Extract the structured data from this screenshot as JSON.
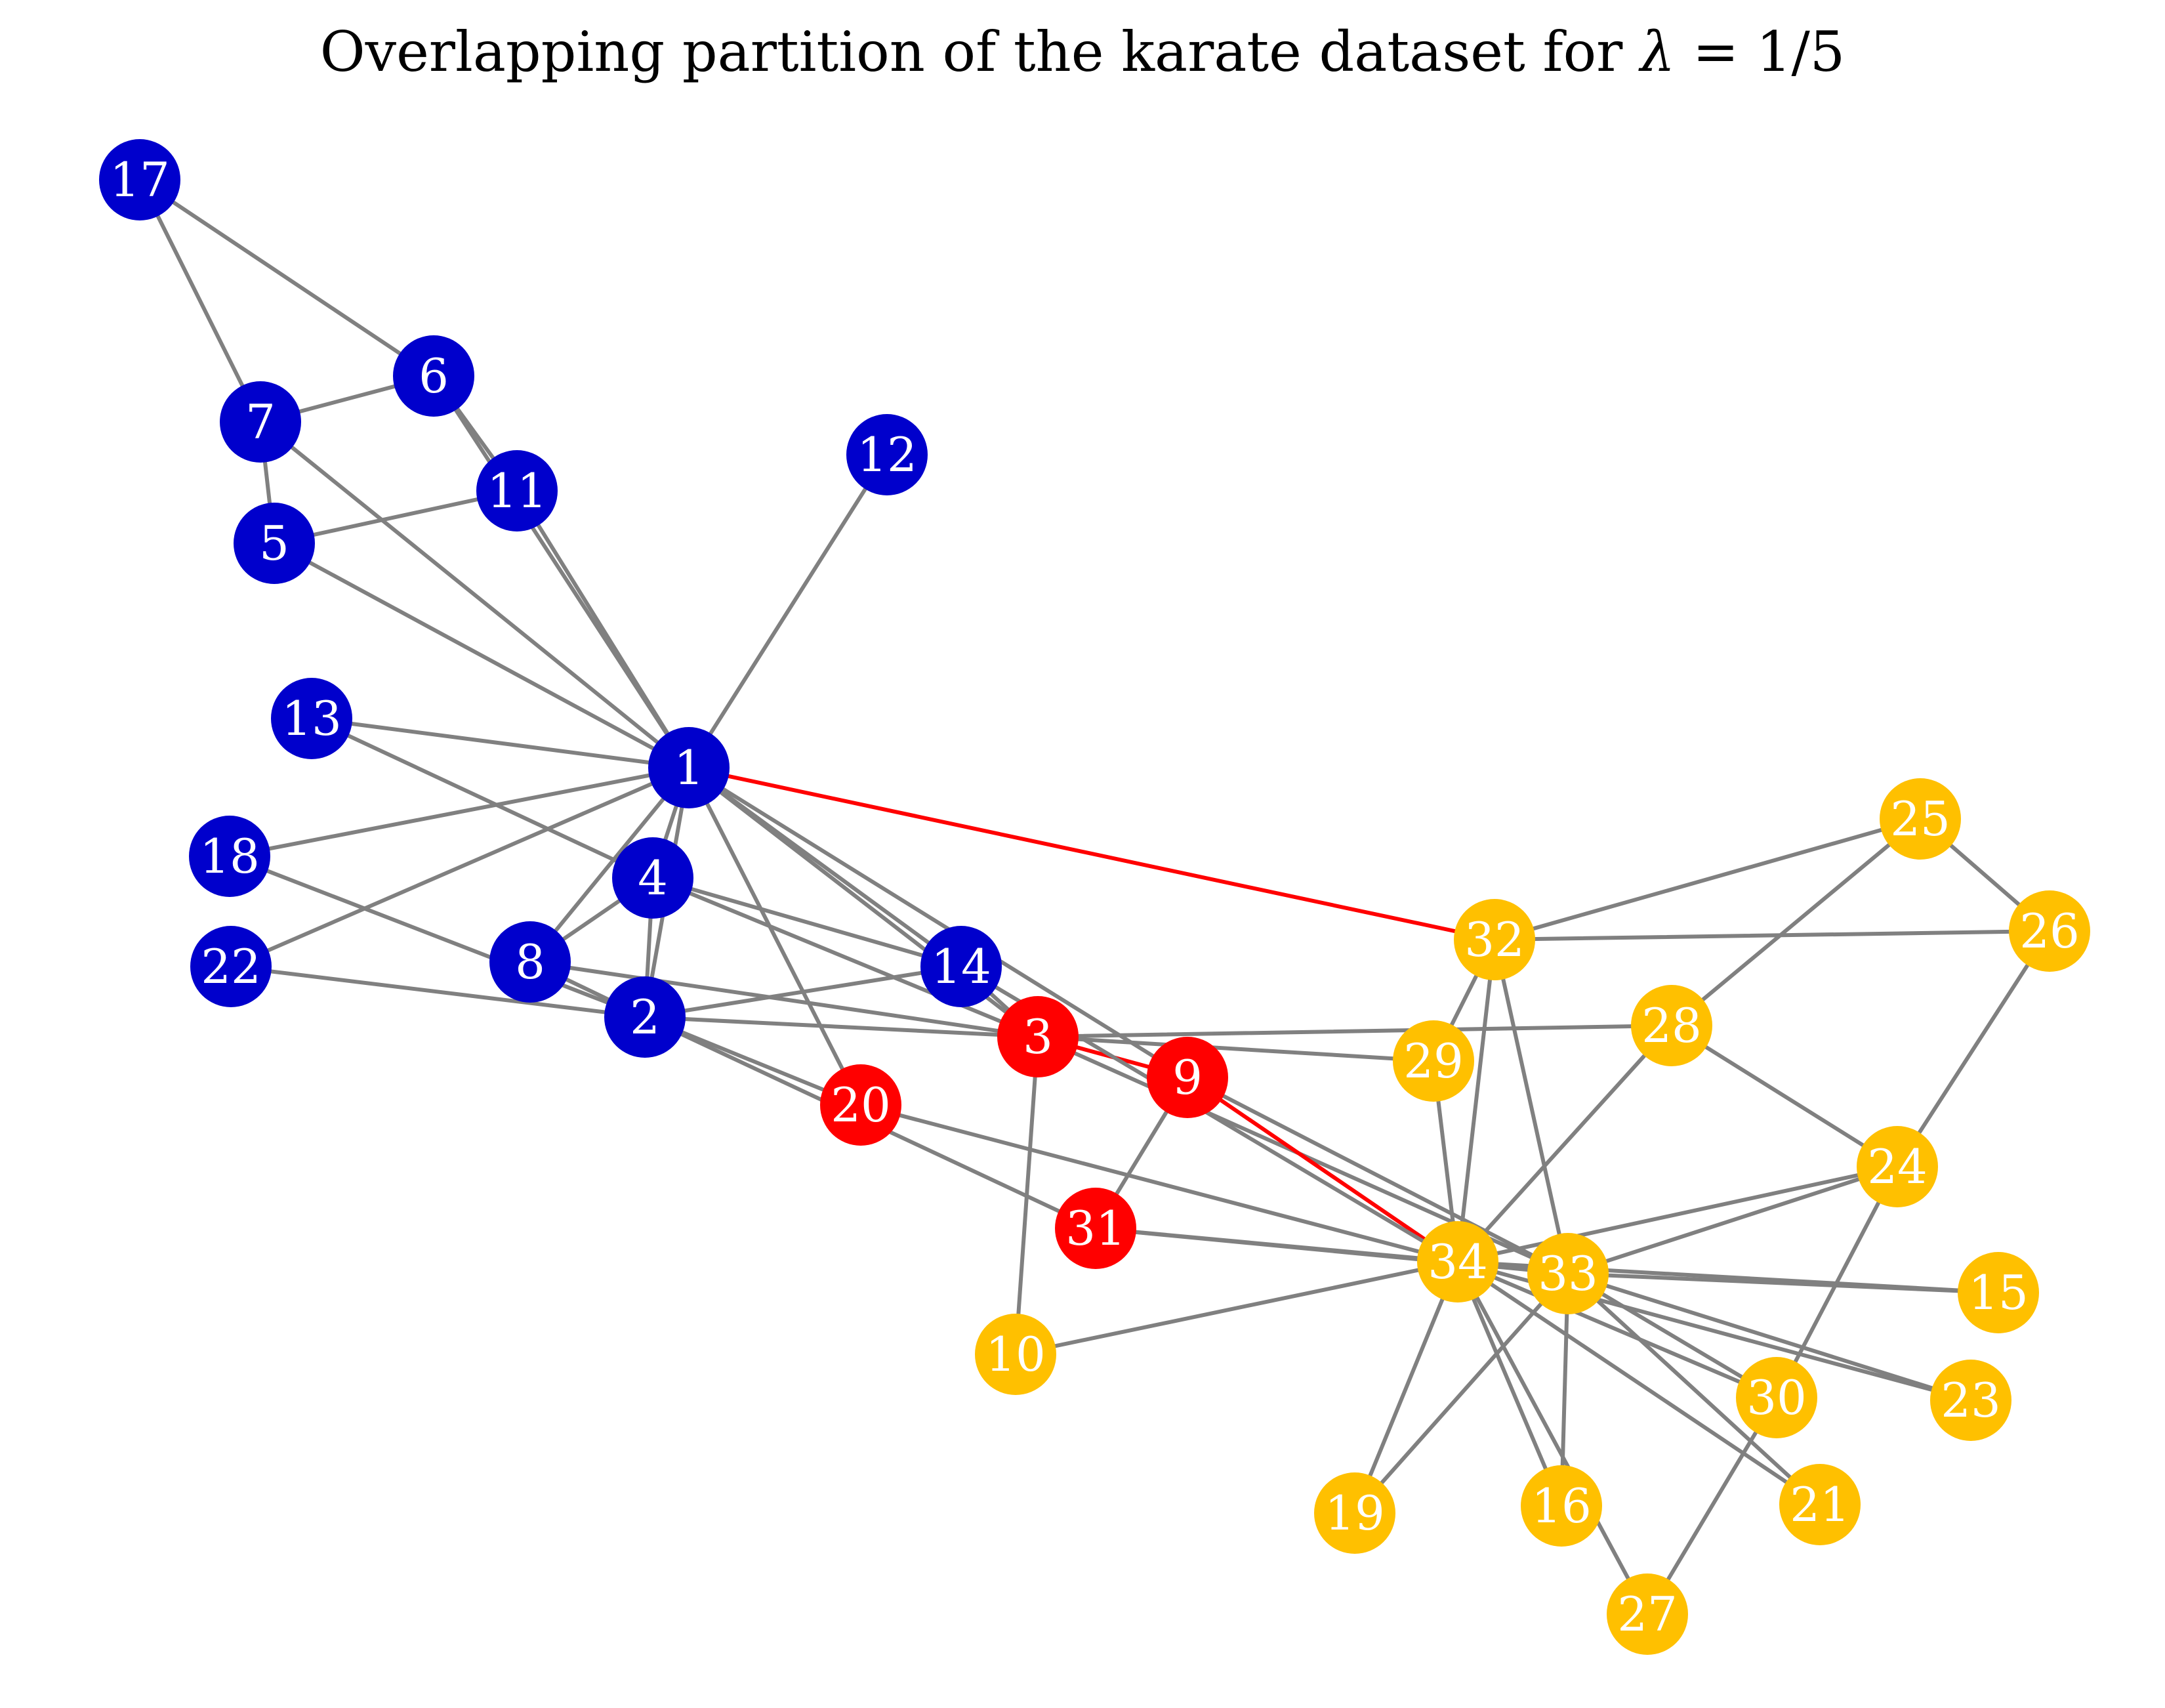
{
  "title": {
    "prefix": "Overlapping partition of the karate dataset for ",
    "lambda_symbol": "λ",
    "suffix": " = 1/5"
  },
  "colors": {
    "edge": "#808080",
    "cross_edge": "#ff0000",
    "label": "#ffffff",
    "community_blue": "#0000cc",
    "community_red": "#ff0000",
    "community_gold": "#ffc000"
  },
  "nodes": [
    {
      "id": "1",
      "community": "blue"
    },
    {
      "id": "2",
      "community": "blue"
    },
    {
      "id": "3",
      "community": "red"
    },
    {
      "id": "4",
      "community": "blue"
    },
    {
      "id": "5",
      "community": "blue"
    },
    {
      "id": "6",
      "community": "blue"
    },
    {
      "id": "7",
      "community": "blue"
    },
    {
      "id": "8",
      "community": "blue"
    },
    {
      "id": "9",
      "community": "red"
    },
    {
      "id": "10",
      "community": "gold"
    },
    {
      "id": "11",
      "community": "blue"
    },
    {
      "id": "12",
      "community": "blue"
    },
    {
      "id": "13",
      "community": "blue"
    },
    {
      "id": "14",
      "community": "blue"
    },
    {
      "id": "15",
      "community": "gold"
    },
    {
      "id": "16",
      "community": "gold"
    },
    {
      "id": "17",
      "community": "blue"
    },
    {
      "id": "18",
      "community": "blue"
    },
    {
      "id": "19",
      "community": "gold"
    },
    {
      "id": "20",
      "community": "red"
    },
    {
      "id": "21",
      "community": "gold"
    },
    {
      "id": "22",
      "community": "blue"
    },
    {
      "id": "23",
      "community": "gold"
    },
    {
      "id": "24",
      "community": "gold"
    },
    {
      "id": "25",
      "community": "gold"
    },
    {
      "id": "26",
      "community": "gold"
    },
    {
      "id": "27",
      "community": "gold"
    },
    {
      "id": "28",
      "community": "gold"
    },
    {
      "id": "29",
      "community": "gold"
    },
    {
      "id": "30",
      "community": "gold"
    },
    {
      "id": "31",
      "community": "red"
    },
    {
      "id": "32",
      "community": "gold"
    },
    {
      "id": "33",
      "community": "gold"
    },
    {
      "id": "34",
      "community": "gold"
    }
  ],
  "edges": [
    [
      "1",
      "2"
    ],
    [
      "1",
      "3"
    ],
    [
      "1",
      "4"
    ],
    [
      "1",
      "5"
    ],
    [
      "1",
      "6"
    ],
    [
      "1",
      "7"
    ],
    [
      "1",
      "8"
    ],
    [
      "1",
      "9"
    ],
    [
      "1",
      "11"
    ],
    [
      "1",
      "12"
    ],
    [
      "1",
      "13"
    ],
    [
      "1",
      "14"
    ],
    [
      "1",
      "18"
    ],
    [
      "1",
      "20"
    ],
    [
      "1",
      "22"
    ],
    [
      "1",
      "32"
    ],
    [
      "2",
      "3"
    ],
    [
      "2",
      "4"
    ],
    [
      "2",
      "8"
    ],
    [
      "2",
      "14"
    ],
    [
      "2",
      "18"
    ],
    [
      "2",
      "20"
    ],
    [
      "2",
      "22"
    ],
    [
      "2",
      "31"
    ],
    [
      "3",
      "4"
    ],
    [
      "3",
      "8"
    ],
    [
      "3",
      "9"
    ],
    [
      "3",
      "10"
    ],
    [
      "3",
      "14"
    ],
    [
      "3",
      "28"
    ],
    [
      "3",
      "29"
    ],
    [
      "3",
      "33"
    ],
    [
      "4",
      "8"
    ],
    [
      "4",
      "13"
    ],
    [
      "4",
      "14"
    ],
    [
      "5",
      "7"
    ],
    [
      "5",
      "11"
    ],
    [
      "6",
      "7"
    ],
    [
      "6",
      "11"
    ],
    [
      "6",
      "17"
    ],
    [
      "7",
      "17"
    ],
    [
      "9",
      "31"
    ],
    [
      "9",
      "33"
    ],
    [
      "9",
      "34"
    ],
    [
      "10",
      "34"
    ],
    [
      "14",
      "34"
    ],
    [
      "15",
      "33"
    ],
    [
      "15",
      "34"
    ],
    [
      "16",
      "33"
    ],
    [
      "16",
      "34"
    ],
    [
      "19",
      "33"
    ],
    [
      "19",
      "34"
    ],
    [
      "20",
      "34"
    ],
    [
      "21",
      "33"
    ],
    [
      "21",
      "34"
    ],
    [
      "23",
      "33"
    ],
    [
      "23",
      "34"
    ],
    [
      "24",
      "26"
    ],
    [
      "24",
      "28"
    ],
    [
      "24",
      "30"
    ],
    [
      "24",
      "33"
    ],
    [
      "24",
      "34"
    ],
    [
      "25",
      "26"
    ],
    [
      "25",
      "28"
    ],
    [
      "25",
      "32"
    ],
    [
      "26",
      "32"
    ],
    [
      "27",
      "30"
    ],
    [
      "27",
      "34"
    ],
    [
      "28",
      "34"
    ],
    [
      "29",
      "32"
    ],
    [
      "29",
      "34"
    ],
    [
      "30",
      "33"
    ],
    [
      "30",
      "34"
    ],
    [
      "31",
      "33"
    ],
    [
      "31",
      "34"
    ],
    [
      "32",
      "33"
    ],
    [
      "32",
      "34"
    ],
    [
      "33",
      "34"
    ]
  ],
  "highlighted_edges": [
    [
      "1",
      "32"
    ],
    [
      "3",
      "9"
    ],
    [
      "9",
      "34"
    ]
  ]
}
